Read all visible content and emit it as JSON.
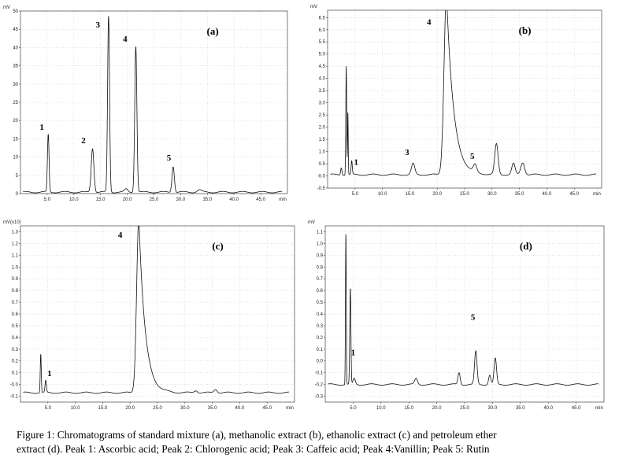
{
  "chart_data": [
    {
      "type": "line",
      "panel_label": "(a)",
      "y_unit": "mV",
      "x_unit": "min",
      "xlim": [
        0,
        50
      ],
      "ylim": [
        0,
        50
      ],
      "x_ticks": [
        "5.0",
        "10.0",
        "15.0",
        "20.0",
        "25.0",
        "30.0",
        "35.0",
        "40.0",
        "45.0"
      ],
      "y_ticks": [
        "0",
        "5",
        "10",
        "15",
        "20",
        "25",
        "30",
        "35",
        "40",
        "45",
        "50"
      ],
      "grid": true,
      "baseline": 0.4,
      "peaks": [
        {
          "label": "1",
          "x": 5.2,
          "height": 15.8,
          "width": 0.15
        },
        {
          "label": "2",
          "x": 13.5,
          "height": 12.0,
          "width": 0.25
        },
        {
          "label": "3",
          "x": 16.5,
          "height": 48.2,
          "width": 0.18
        },
        {
          "label": "4",
          "x": 21.6,
          "height": 40.0,
          "width": 0.2
        },
        {
          "label": "5",
          "x": 28.6,
          "height": 7.1,
          "width": 0.22
        },
        {
          "x": 19.8,
          "height": 0.8,
          "width": 0.3
        },
        {
          "x": 33.5,
          "height": 0.6,
          "width": 0.4
        }
      ],
      "annotations": [
        {
          "text": "1",
          "x": 4.0,
          "y": 17.5
        },
        {
          "text": "2",
          "x": 11.8,
          "y": 13.8
        },
        {
          "text": "3",
          "x": 14.5,
          "y": 45.5
        },
        {
          "text": "4",
          "x": 19.6,
          "y": 41.6
        },
        {
          "text": "5",
          "x": 27.8,
          "y": 9.0
        }
      ]
    },
    {
      "type": "line",
      "panel_label": "(b)",
      "y_unit": "mV",
      "x_unit": "min",
      "xlim": [
        0,
        50
      ],
      "ylim": [
        -0.5,
        6.8
      ],
      "x_ticks": [
        "5.0",
        "10.0",
        "15.0",
        "20.0",
        "25.0",
        "30.0",
        "35.0",
        "40.0",
        "45.0"
      ],
      "y_ticks": [
        "-0.5",
        "-0.0",
        "0.5",
        "1.0",
        "1.5",
        "2.0",
        "2.5",
        "3.0",
        "3.5",
        "4.0",
        "4.5",
        "5.0",
        "5.5",
        "6.0",
        "6.5"
      ],
      "grid": true,
      "baseline": 0.05,
      "peaks": [
        {
          "x": 3.4,
          "height": 4.5,
          "width": 0.08
        },
        {
          "x": 3.7,
          "height": 2.6,
          "width": 0.06
        },
        {
          "label": "1",
          "x": 4.4,
          "height": 0.55,
          "width": 0.1
        },
        {
          "x": 2.5,
          "height": 0.3,
          "width": 0.12
        },
        {
          "label": "3",
          "x": 15.6,
          "height": 0.45,
          "width": 0.3
        },
        {
          "label": "4",
          "x": 21.7,
          "height": 7.5,
          "width": 0.45,
          "tail": true
        },
        {
          "label": "5",
          "x": 26.9,
          "height": 0.3,
          "width": 0.3
        },
        {
          "x": 30.8,
          "height": 1.25,
          "width": 0.3
        },
        {
          "x": 33.9,
          "height": 0.45,
          "width": 0.3
        },
        {
          "x": 35.6,
          "height": 0.5,
          "width": 0.35
        }
      ],
      "annotations": [
        {
          "text": "1",
          "x": 5.2,
          "y": 0.45
        },
        {
          "text": "3",
          "x": 14.5,
          "y": 0.85
        },
        {
          "text": "4",
          "x": 18.5,
          "y": 6.2
        },
        {
          "text": "5",
          "x": 26.4,
          "y": 0.7
        }
      ]
    },
    {
      "type": "line",
      "panel_label": "(c)",
      "y_unit": "mV(x10)",
      "x_unit": "min",
      "xlim": [
        0,
        50
      ],
      "ylim": [
        -0.15,
        1.35
      ],
      "x_ticks": [
        "5.0",
        "10.0",
        "15.0",
        "20.0",
        "25.0",
        "30.0",
        "35.0",
        "40.0",
        "45.0"
      ],
      "y_ticks": [
        "-0.1",
        "-0.0",
        "0.1",
        "0.2",
        "0.3",
        "0.4",
        "0.5",
        "0.6",
        "0.7",
        "0.8",
        "0.9",
        "1.0",
        "1.1",
        "1.2",
        "1.3"
      ],
      "grid": true,
      "baseline": -0.07,
      "peaks": [
        {
          "x": 3.7,
          "height": 0.33,
          "width": 0.09
        },
        {
          "label": "1",
          "x": 4.6,
          "height": 0.1,
          "width": 0.12
        },
        {
          "label": "4",
          "x": 21.6,
          "height": 1.5,
          "width": 0.4,
          "tail": true
        },
        {
          "x": 32.0,
          "height": 0.02,
          "width": 0.3
        },
        {
          "x": 35.6,
          "height": 0.03,
          "width": 0.3
        }
      ],
      "annotations": [
        {
          "text": "1",
          "x": 5.3,
          "y": 0.07
        },
        {
          "text": "4",
          "x": 18.2,
          "y": 1.25
        }
      ]
    },
    {
      "type": "line",
      "panel_label": "(d)",
      "y_unit": "mV",
      "x_unit": "min",
      "xlim": [
        0,
        50
      ],
      "ylim": [
        -0.35,
        1.15
      ],
      "x_ticks": [
        "5.0",
        "10.0",
        "15.0",
        "20.0",
        "25.0",
        "30.0",
        "35.0",
        "40.0",
        "45.0"
      ],
      "y_ticks": [
        "-0.3",
        "-0.2",
        "-0.1",
        "0.0",
        "0.1",
        "0.2",
        "0.3",
        "0.4",
        "0.5",
        "0.6",
        "0.7",
        "0.8",
        "0.9",
        "1.0",
        "1.1"
      ],
      "grid": true,
      "baseline": -0.2,
      "peaks": [
        {
          "x": 3.7,
          "height": 1.3,
          "width": 0.07
        },
        {
          "label": "1",
          "x": 4.5,
          "height": 0.82,
          "width": 0.1
        },
        {
          "x": 5.2,
          "height": 0.05,
          "width": 0.2
        },
        {
          "x": 16.3,
          "height": 0.05,
          "width": 0.25
        },
        {
          "x": 24.0,
          "height": 0.1,
          "width": 0.2
        },
        {
          "label": "5",
          "x": 27.0,
          "height": 0.28,
          "width": 0.22
        },
        {
          "x": 29.5,
          "height": 0.08,
          "width": 0.2
        },
        {
          "x": 30.5,
          "height": 0.22,
          "width": 0.22
        }
      ],
      "annotations": [
        {
          "text": "1",
          "x": 5.0,
          "y": 0.05
        },
        {
          "text": "5",
          "x": 26.5,
          "y": 0.35
        }
      ]
    }
  ],
  "caption": {
    "line1": "Figure 1: Chromatograms of standard mixture (a), methanolic extract (b), ethanolic extract (c) and petroleum ether",
    "line2": "extract (d). Peak 1: Ascorbic acid; Peak 2: Chlorogenic acid; Peak 3: Caffeic acid; Peak 4:Vanillin; Peak 5: Rutin"
  }
}
